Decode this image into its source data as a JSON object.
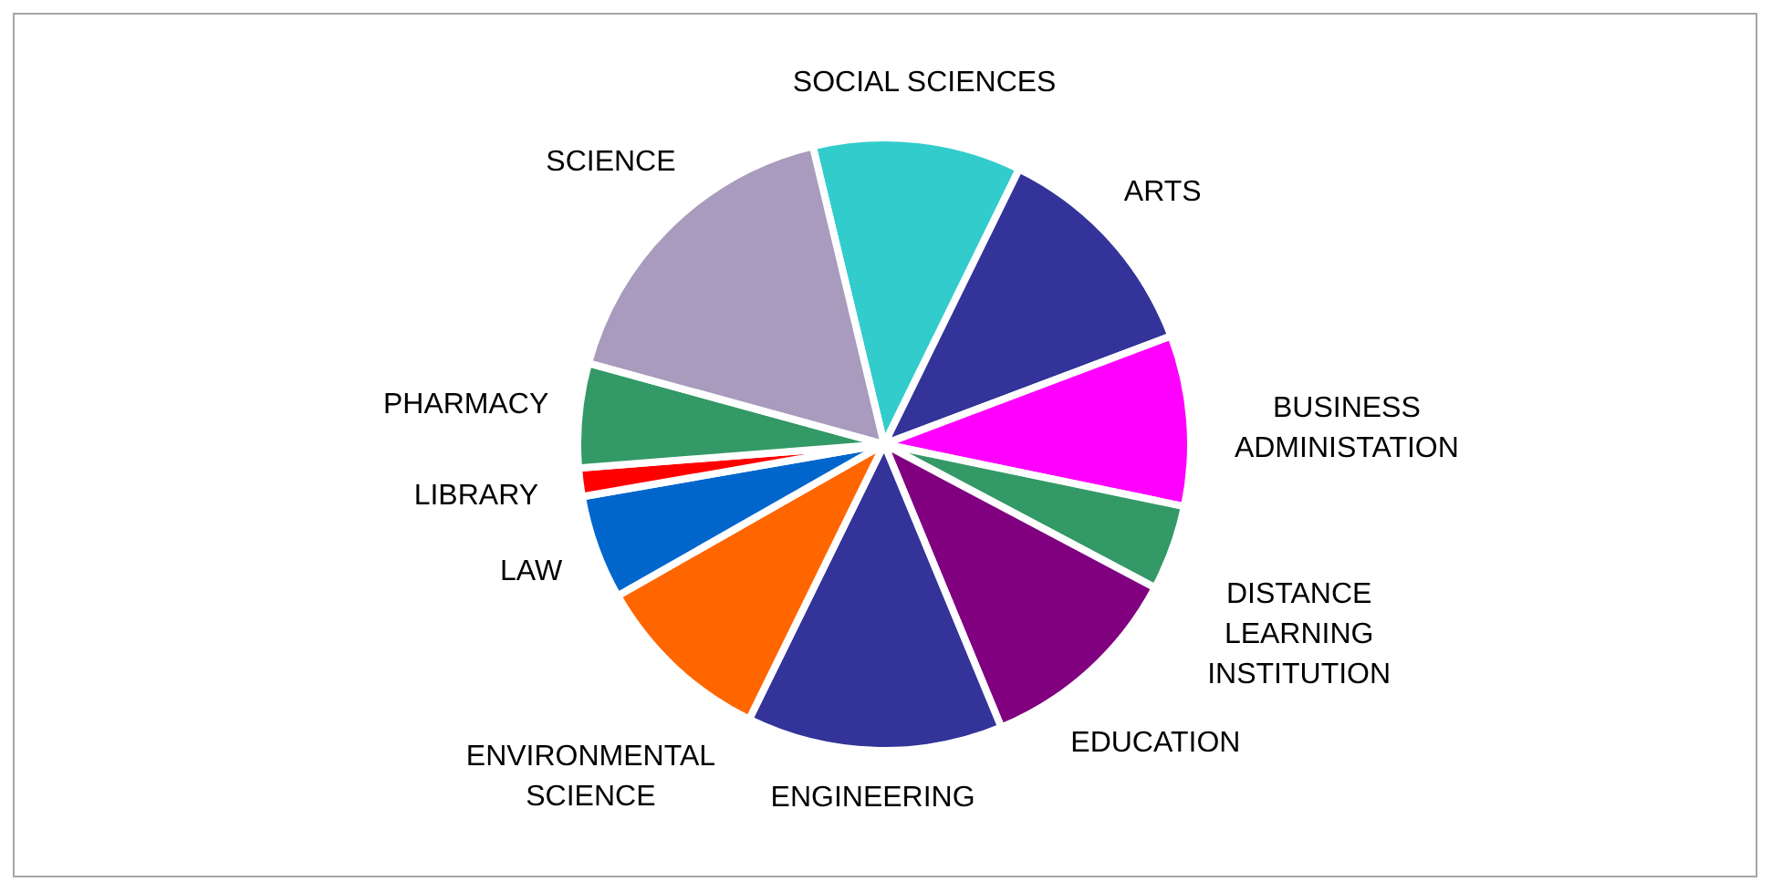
{
  "chart_data": {
    "type": "pie",
    "categories": [
      "SOCIAL SCIENCES",
      "ARTS",
      "BUSINESS\nADMINISTATION",
      "DISTANCE\nLEARNING\nINSTITUTION",
      "EDUCATION",
      "ENGINEERING",
      "ENVIRONMENTAL\nSCIENCE",
      "LAW",
      "LIBRARY",
      "PHARMACY",
      "SCIENCE"
    ],
    "values": [
      11,
      12,
      9,
      4.5,
      11,
      13.5,
      9.5,
      5.5,
      1.5,
      5.5,
      17
    ],
    "colors": [
      "#33cccc",
      "#333399",
      "#ff00ff",
      "#339966",
      "#800080",
      "#333399",
      "#ff6600",
      "#0066cc",
      "#ff0000",
      "#339966",
      "#a99bbd"
    ]
  }
}
